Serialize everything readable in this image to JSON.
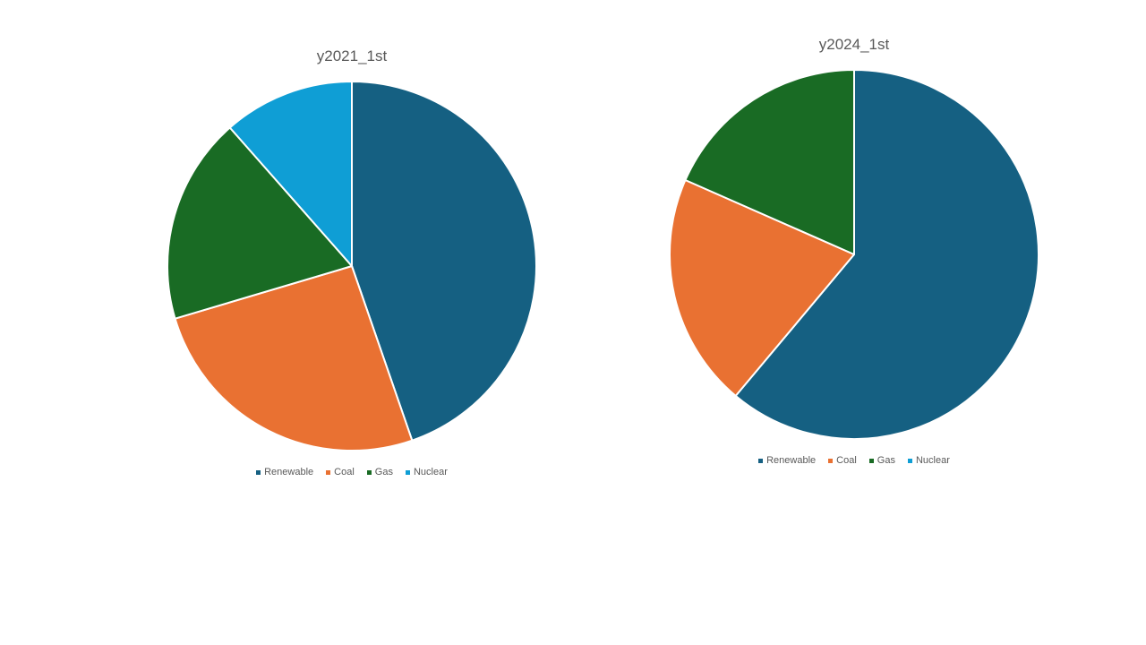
{
  "chart_data": [
    {
      "type": "pie",
      "title": "y2021_1st",
      "categories": [
        "Renewable",
        "Coal",
        "Gas",
        "Nuclear"
      ],
      "values": [
        44.7,
        25.7,
        18.1,
        11.5
      ],
      "colors": [
        "#156082",
        "#E97132",
        "#196B24",
        "#0F9ED5"
      ],
      "legend_position": "bottom"
    },
    {
      "type": "pie",
      "title": "y2024_1st",
      "categories": [
        "Renewable",
        "Coal",
        "Gas",
        "Nuclear"
      ],
      "values": [
        61.1,
        20.5,
        18.4,
        0
      ],
      "colors": [
        "#156082",
        "#E97132",
        "#196B24",
        "#0F9ED5"
      ],
      "legend_position": "bottom"
    }
  ]
}
